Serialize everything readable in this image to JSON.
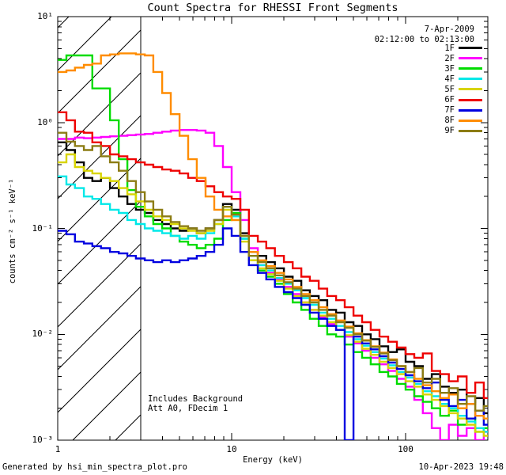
{
  "title": "Count Spectra for RHESSI Front Segments",
  "header": {
    "date": "7-Apr-2009",
    "time_range": "02:12:00 to 02:13:00"
  },
  "plot_notes": {
    "line1": "Includes Background",
    "line2": "Att A0, FDecim 1"
  },
  "footer": {
    "left": "Generated by hsi_min_spectra_plot.pro",
    "right": "10-Apr-2023 19:48"
  },
  "chart_data": {
    "type": "line",
    "title": "Count Spectra for RHESSI Front Segments",
    "xlabel": "Energy (keV)",
    "ylabel": "counts cm⁻² s⁻¹ keV⁻¹",
    "x_scale": "log",
    "y_scale": "log",
    "xlim": [
      1,
      297
    ],
    "ylim": [
      0.001,
      10
    ],
    "grid": false,
    "legend_position": "upper right inside",
    "x_ticks": [
      {
        "label": "1",
        "value": 1
      },
      {
        "label": "10",
        "value": 10
      },
      {
        "label": "100",
        "value": 100
      }
    ],
    "y_ticks": [
      {
        "label": "10¹",
        "value": 10
      },
      {
        "label": "10⁰",
        "value": 1
      },
      {
        "label": "10⁻¹",
        "value": 0.1
      },
      {
        "label": "10⁻²",
        "value": 0.01
      },
      {
        "label": "10⁻³",
        "value": 0.001
      }
    ],
    "hatch_region": {
      "from_keV": 1,
      "to_keV": 3
    },
    "bin_log10_step": 0.05,
    "energies_keV": [
      1.0,
      1.12,
      1.26,
      1.41,
      1.58,
      1.78,
      2.0,
      2.24,
      2.51,
      2.82,
      3.16,
      3.55,
      3.98,
      4.47,
      5.01,
      5.62,
      6.31,
      7.08,
      7.94,
      8.91,
      10.0,
      11.2,
      12.6,
      14.1,
      15.8,
      17.8,
      20.0,
      22.4,
      25.1,
      28.2,
      31.6,
      35.5,
      39.8,
      44.7,
      50.1,
      56.2,
      63.1,
      70.8,
      79.4,
      89.1,
      100,
      112,
      126,
      141,
      158,
      178,
      200,
      224,
      251,
      282
    ],
    "series": [
      {
        "name": "1F",
        "color": "#000000",
        "values": [
          0.65,
          0.55,
          0.42,
          0.3,
          0.28,
          0.3,
          0.24,
          0.2,
          0.17,
          0.15,
          0.14,
          0.12,
          0.11,
          0.1,
          0.095,
          0.1,
          0.09,
          0.1,
          0.12,
          0.17,
          0.15,
          0.09,
          0.06,
          0.055,
          0.048,
          0.042,
          0.035,
          0.032,
          0.026,
          0.023,
          0.021,
          0.017,
          0.016,
          0.013,
          0.012,
          0.01,
          0.009,
          0.0077,
          0.0068,
          0.0072,
          0.0055,
          0.005,
          0.0038,
          0.0042,
          0.0032,
          0.0028,
          0.003,
          0.0022,
          0.0025,
          0.0018
        ]
      },
      {
        "name": "2F",
        "color": "#ff00ff",
        "values": [
          0.7,
          0.7,
          0.72,
          0.71,
          0.72,
          0.73,
          0.74,
          0.75,
          0.76,
          0.77,
          0.78,
          0.8,
          0.82,
          0.84,
          0.85,
          0.85,
          0.84,
          0.8,
          0.6,
          0.38,
          0.22,
          0.12,
          0.065,
          0.045,
          0.038,
          0.033,
          0.028,
          0.024,
          0.02,
          0.017,
          0.0145,
          0.0125,
          0.011,
          0.0095,
          0.0082,
          0.007,
          0.006,
          0.0052,
          0.0045,
          0.0038,
          0.0032,
          0.0024,
          0.0018,
          0.0013,
          0.001,
          0.0014,
          0.0011,
          0.0013,
          0.001,
          0.0012
        ]
      },
      {
        "name": "3F",
        "color": "#00dc00",
        "values": [
          3.9,
          4.3,
          4.3,
          4.3,
          2.1,
          2.1,
          1.05,
          0.45,
          0.23,
          0.16,
          0.13,
          0.11,
          0.1,
          0.085,
          0.075,
          0.07,
          0.065,
          0.07,
          0.08,
          0.12,
          0.14,
          0.08,
          0.05,
          0.04,
          0.035,
          0.03,
          0.024,
          0.02,
          0.017,
          0.014,
          0.012,
          0.01,
          0.0095,
          0.008,
          0.0068,
          0.006,
          0.0052,
          0.0044,
          0.004,
          0.0034,
          0.003,
          0.0026,
          0.0023,
          0.002,
          0.0017,
          0.0019,
          0.0014,
          0.0016,
          0.0012,
          0.0013
        ]
      },
      {
        "name": "4F",
        "color": "#00e8e8",
        "values": [
          0.31,
          0.26,
          0.24,
          0.2,
          0.19,
          0.17,
          0.15,
          0.14,
          0.12,
          0.11,
          0.1,
          0.095,
          0.09,
          0.085,
          0.08,
          0.085,
          0.08,
          0.09,
          0.11,
          0.16,
          0.13,
          0.08,
          0.055,
          0.045,
          0.04,
          0.034,
          0.03,
          0.026,
          0.022,
          0.019,
          0.016,
          0.014,
          0.012,
          0.0105,
          0.009,
          0.0078,
          0.0068,
          0.0059,
          0.0051,
          0.0044,
          0.0039,
          0.0034,
          0.0029,
          0.0026,
          0.0022,
          0.002,
          0.0017,
          0.0015,
          0.0013,
          0.0012
        ]
      },
      {
        "name": "5F",
        "color": "#d8d400",
        "values": [
          0.42,
          0.5,
          0.38,
          0.35,
          0.33,
          0.3,
          0.28,
          0.24,
          0.21,
          0.18,
          0.15,
          0.13,
          0.12,
          0.11,
          0.1,
          0.095,
          0.09,
          0.095,
          0.11,
          0.15,
          0.12,
          0.075,
          0.05,
          0.042,
          0.037,
          0.032,
          0.027,
          0.023,
          0.02,
          0.017,
          0.015,
          0.013,
          0.011,
          0.0098,
          0.0085,
          0.0073,
          0.0064,
          0.0055,
          0.0048,
          0.0042,
          0.0036,
          0.0032,
          0.0027,
          0.0024,
          0.0021,
          0.0018,
          0.0016,
          0.0014,
          0.0012,
          0.0011
        ]
      },
      {
        "name": "6F",
        "color": "#ee0000",
        "values": [
          1.25,
          1.05,
          0.82,
          0.8,
          0.65,
          0.6,
          0.5,
          0.48,
          0.45,
          0.42,
          0.4,
          0.38,
          0.36,
          0.35,
          0.33,
          0.3,
          0.28,
          0.25,
          0.22,
          0.2,
          0.19,
          0.15,
          0.085,
          0.075,
          0.065,
          0.055,
          0.048,
          0.042,
          0.035,
          0.032,
          0.027,
          0.023,
          0.021,
          0.018,
          0.015,
          0.013,
          0.011,
          0.0095,
          0.0085,
          0.0075,
          0.0065,
          0.006,
          0.0066,
          0.0045,
          0.0042,
          0.0036,
          0.004,
          0.0028,
          0.0035,
          0.0025
        ]
      },
      {
        "name": "7F",
        "color": "#0000e0",
        "values": [
          0.095,
          0.088,
          0.075,
          0.072,
          0.068,
          0.065,
          0.06,
          0.058,
          0.055,
          0.052,
          0.05,
          0.048,
          0.05,
          0.048,
          0.05,
          0.052,
          0.055,
          0.06,
          0.07,
          0.1,
          0.085,
          0.06,
          0.045,
          0.038,
          0.033,
          0.028,
          0.025,
          0.022,
          0.019,
          0.016,
          0.014,
          0.012,
          0.011,
          0.001,
          0.0095,
          0.0082,
          0.0072,
          0.0062,
          0.0054,
          0.0047,
          0.0041,
          0.0036,
          0.0031,
          0.0035,
          0.0024,
          0.0021,
          0.0024,
          0.0016,
          0.0019,
          0.0014
        ]
      },
      {
        "name": "8F",
        "color": "#ff8c00",
        "values": [
          3.0,
          3.1,
          3.3,
          3.5,
          3.6,
          4.3,
          4.4,
          4.5,
          4.5,
          4.4,
          4.3,
          3.0,
          1.9,
          1.2,
          0.75,
          0.45,
          0.3,
          0.2,
          0.15,
          0.13,
          0.12,
          0.085,
          0.06,
          0.05,
          0.044,
          0.038,
          0.033,
          0.028,
          0.024,
          0.021,
          0.018,
          0.0155,
          0.0135,
          0.0118,
          0.0102,
          0.0088,
          0.0077,
          0.0067,
          0.0058,
          0.005,
          0.0044,
          0.0038,
          0.0033,
          0.0029,
          0.0025,
          0.0027,
          0.002,
          0.0022,
          0.0017,
          0.0016
        ]
      },
      {
        "name": "9F",
        "color": "#8c7c14",
        "values": [
          0.8,
          0.66,
          0.6,
          0.55,
          0.6,
          0.48,
          0.42,
          0.35,
          0.28,
          0.22,
          0.18,
          0.15,
          0.13,
          0.115,
          0.105,
          0.1,
          0.095,
          0.1,
          0.12,
          0.16,
          0.135,
          0.085,
          0.055,
          0.048,
          0.042,
          0.036,
          0.031,
          0.027,
          0.023,
          0.02,
          0.017,
          0.015,
          0.013,
          0.0115,
          0.01,
          0.0087,
          0.0076,
          0.0066,
          0.0057,
          0.005,
          0.0044,
          0.0048,
          0.0035,
          0.0038,
          0.0028,
          0.0031,
          0.0022,
          0.0026,
          0.0019,
          0.0021
        ]
      }
    ]
  }
}
